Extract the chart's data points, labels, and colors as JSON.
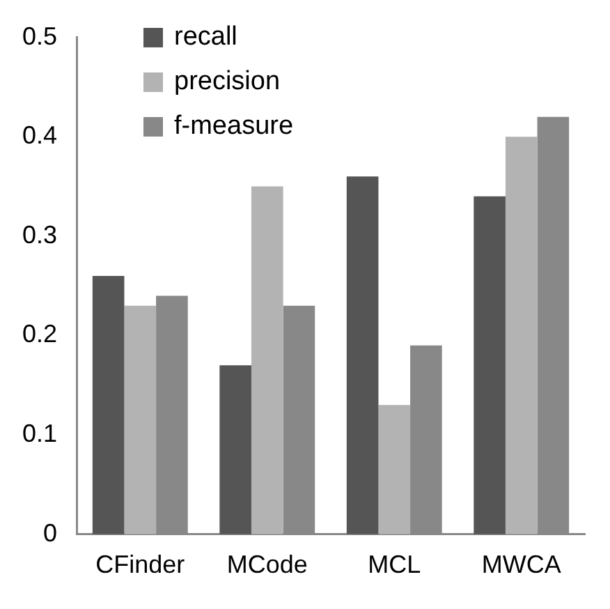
{
  "chart_data": {
    "type": "bar",
    "categories": [
      "CFinder",
      "MCode",
      "MCL",
      "MWCA"
    ],
    "series": [
      {
        "name": "recall",
        "color": "#555555",
        "values": [
          0.26,
          0.17,
          0.36,
          0.34
        ]
      },
      {
        "name": "precision",
        "color": "#b3b3b3",
        "values": [
          0.23,
          0.35,
          0.13,
          0.4
        ]
      },
      {
        "name": "f-measure",
        "color": "#888888",
        "values": [
          0.24,
          0.23,
          0.19,
          0.42
        ]
      }
    ],
    "ylim": [
      0,
      0.5
    ],
    "yticks": [
      0,
      0.1,
      0.2,
      0.3,
      0.4,
      0.5
    ],
    "grid": false,
    "legend": "top left"
  }
}
